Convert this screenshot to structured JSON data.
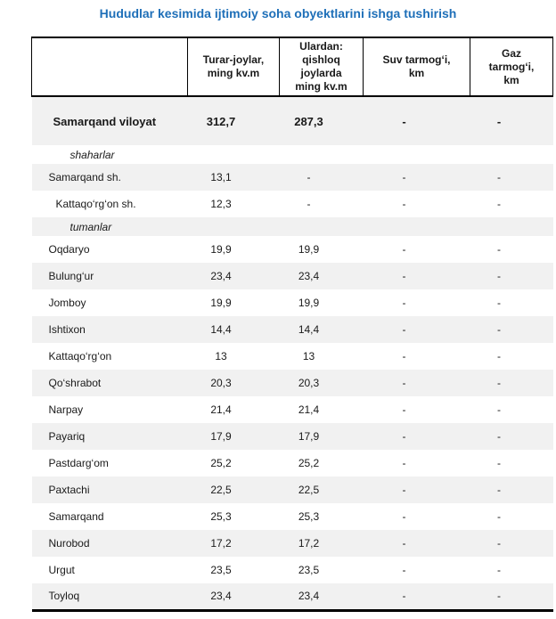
{
  "title": "Hududlar kesimida ijtimoiy soha obyektlarini ishga tushirish",
  "colors": {
    "title_accent": "#1e6fb8",
    "row_stripe": "#f1f1f1",
    "table_rule": "#000000"
  },
  "table": {
    "columns": [
      {
        "label": ""
      },
      {
        "label": "Turar-joylar,\nming kv.m"
      },
      {
        "label": "Ulardan:\nqishloq\njoylarda\nming kv.m"
      },
      {
        "label": "Suv tarmog‘i,\nkm"
      },
      {
        "label": "Gaz\ntarmog‘i,\nkm"
      }
    ],
    "rows": [
      {
        "label": "Samarqand viloyat",
        "type": "total",
        "shaded": true,
        "values": [
          "312,7",
          "287,3",
          "-",
          "-"
        ]
      },
      {
        "label": "shaharlar",
        "type": "subheader",
        "shaded": false,
        "values": [
          "",
          "",
          "",
          ""
        ]
      },
      {
        "label": "Samarqand sh.",
        "type": "city",
        "shaded": true,
        "values": [
          "13,1",
          "-",
          "-",
          "-"
        ]
      },
      {
        "label": "Kattaqo‘rg‘on sh.",
        "type": "city",
        "shaded": false,
        "extra_indent": true,
        "values": [
          "12,3",
          "-",
          "-",
          "-"
        ]
      },
      {
        "label": "tumanlar",
        "type": "subheader",
        "shaded": true,
        "values": [
          "",
          "",
          "",
          ""
        ]
      },
      {
        "label": "Oqdaryo",
        "type": "district",
        "shaded": false,
        "values": [
          "19,9",
          "19,9",
          "-",
          "-"
        ]
      },
      {
        "label": "Bulung‘ur",
        "type": "district",
        "shaded": true,
        "values": [
          "23,4",
          "23,4",
          "-",
          "-"
        ]
      },
      {
        "label": "Jomboy",
        "type": "district",
        "shaded": false,
        "values": [
          "19,9",
          "19,9",
          "-",
          "-"
        ]
      },
      {
        "label": "Ishtixon",
        "type": "district",
        "shaded": true,
        "values": [
          "14,4",
          "14,4",
          "-",
          "-"
        ]
      },
      {
        "label": "Kattaqo‘rg‘on",
        "type": "district",
        "shaded": false,
        "values": [
          "13",
          "13",
          "-",
          "-"
        ]
      },
      {
        "label": "Qo‘shrabot",
        "type": "district",
        "shaded": true,
        "values": [
          "20,3",
          "20,3",
          "-",
          "-"
        ]
      },
      {
        "label": "Narpay",
        "type": "district",
        "shaded": false,
        "values": [
          "21,4",
          "21,4",
          "-",
          "-"
        ]
      },
      {
        "label": "Payariq",
        "type": "district",
        "shaded": true,
        "values": [
          "17,9",
          "17,9",
          "-",
          "-"
        ]
      },
      {
        "label": "Pastdarg‘om",
        "type": "district",
        "shaded": false,
        "values": [
          "25,2",
          "25,2",
          "-",
          "-"
        ]
      },
      {
        "label": "Paxtachi",
        "type": "district",
        "shaded": true,
        "values": [
          "22,5",
          "22,5",
          "-",
          "-"
        ]
      },
      {
        "label": "Samarqand",
        "type": "district",
        "shaded": false,
        "values": [
          "25,3",
          "25,3",
          "-",
          "-"
        ]
      },
      {
        "label": "Nurobod",
        "type": "district",
        "shaded": true,
        "values": [
          "17,2",
          "17,2",
          "-",
          "-"
        ]
      },
      {
        "label": "Urgut",
        "type": "district",
        "shaded": false,
        "values": [
          "23,5",
          "23,5",
          "-",
          "-"
        ]
      },
      {
        "label": "Toyloq",
        "type": "district",
        "shaded": true,
        "values": [
          "23,4",
          "23,4",
          "-",
          "-"
        ]
      }
    ]
  }
}
